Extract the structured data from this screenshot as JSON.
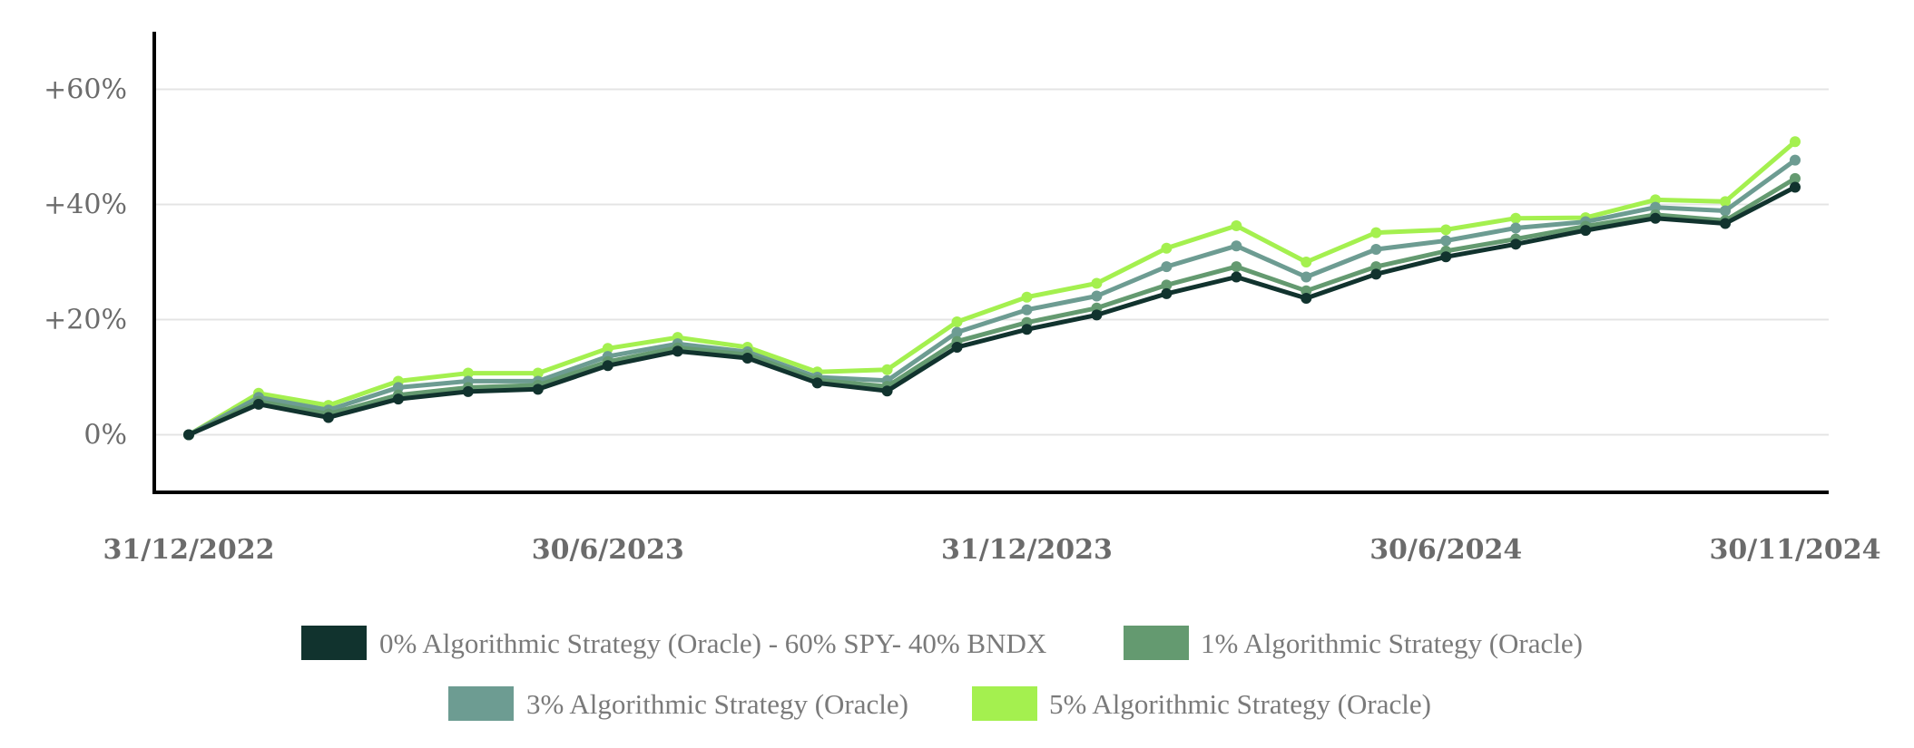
{
  "chart_data": {
    "type": "line",
    "title": "",
    "xlabel": "",
    "ylabel": "",
    "x": [
      "31/12/2022",
      "31/1/2023",
      "28/2/2023",
      "31/3/2023",
      "30/4/2023",
      "31/5/2023",
      "30/6/2023",
      "31/7/2023",
      "31/8/2023",
      "30/9/2023",
      "31/10/2023",
      "30/11/2023",
      "31/12/2023",
      "31/1/2024",
      "29/2/2024",
      "31/3/2024",
      "30/4/2024",
      "31/5/2024",
      "30/6/2024",
      "31/7/2024",
      "31/8/2024",
      "30/9/2024",
      "31/10/2024",
      "30/11/2024"
    ],
    "x_tick_labels": [
      "31/12/2022",
      "30/6/2023",
      "31/12/2023",
      "30/6/2024",
      "30/11/2024"
    ],
    "x_tick_indices": [
      0,
      6,
      12,
      18,
      23
    ],
    "ylim": [
      -10,
      70
    ],
    "y_ticks": [
      0,
      20,
      40,
      60
    ],
    "y_tick_labels": [
      "0%",
      "+20%",
      "+40%",
      "+60%"
    ],
    "grid": true,
    "legend_position": "bottom",
    "series": [
      {
        "name": "0% Algorithmic Strategy (Oracle) - 60% SPY- 40% BNDX",
        "color": "#11332e",
        "values": [
          0,
          5.3,
          3.0,
          6.2,
          7.5,
          7.9,
          12.0,
          14.5,
          13.3,
          9.0,
          7.6,
          15.2,
          18.3,
          20.8,
          24.5,
          27.4,
          23.7,
          27.9,
          30.9,
          33.1,
          35.5,
          37.6,
          36.7,
          43.0
        ]
      },
      {
        "name": "1% Algorithmic Strategy (Oracle)",
        "color": "#649a70",
        "values": [
          0,
          5.8,
          3.6,
          6.9,
          8.2,
          8.6,
          12.7,
          15.1,
          13.9,
          9.5,
          8.4,
          16.2,
          19.5,
          22.0,
          26.0,
          29.2,
          25.0,
          29.2,
          31.9,
          34.0,
          36.2,
          38.2,
          37.2,
          44.5
        ]
      },
      {
        "name": "3% Algorithmic Strategy (Oracle)",
        "color": "#6d9c92",
        "values": [
          0,
          6.5,
          4.3,
          8.2,
          9.3,
          9.3,
          13.6,
          15.8,
          14.4,
          10.0,
          9.4,
          17.8,
          21.7,
          24.1,
          29.2,
          32.8,
          27.4,
          32.2,
          33.7,
          35.9,
          37.0,
          39.5,
          38.9,
          47.7
        ]
      },
      {
        "name": "5% Algorithmic Strategy (Oracle)",
        "color": "#a4f04f",
        "values": [
          0,
          7.2,
          5.1,
          9.3,
          10.7,
          10.7,
          15.0,
          16.9,
          15.2,
          10.9,
          11.3,
          19.6,
          23.9,
          26.3,
          32.4,
          36.3,
          30.0,
          35.1,
          35.6,
          37.6,
          37.7,
          40.8,
          40.5,
          50.9
        ]
      }
    ]
  },
  "colors": {
    "axis": "#000000",
    "grid": "#e4e4e4",
    "tick_text": "#6b6b6b",
    "legend_text": "#7a7a7a"
  }
}
